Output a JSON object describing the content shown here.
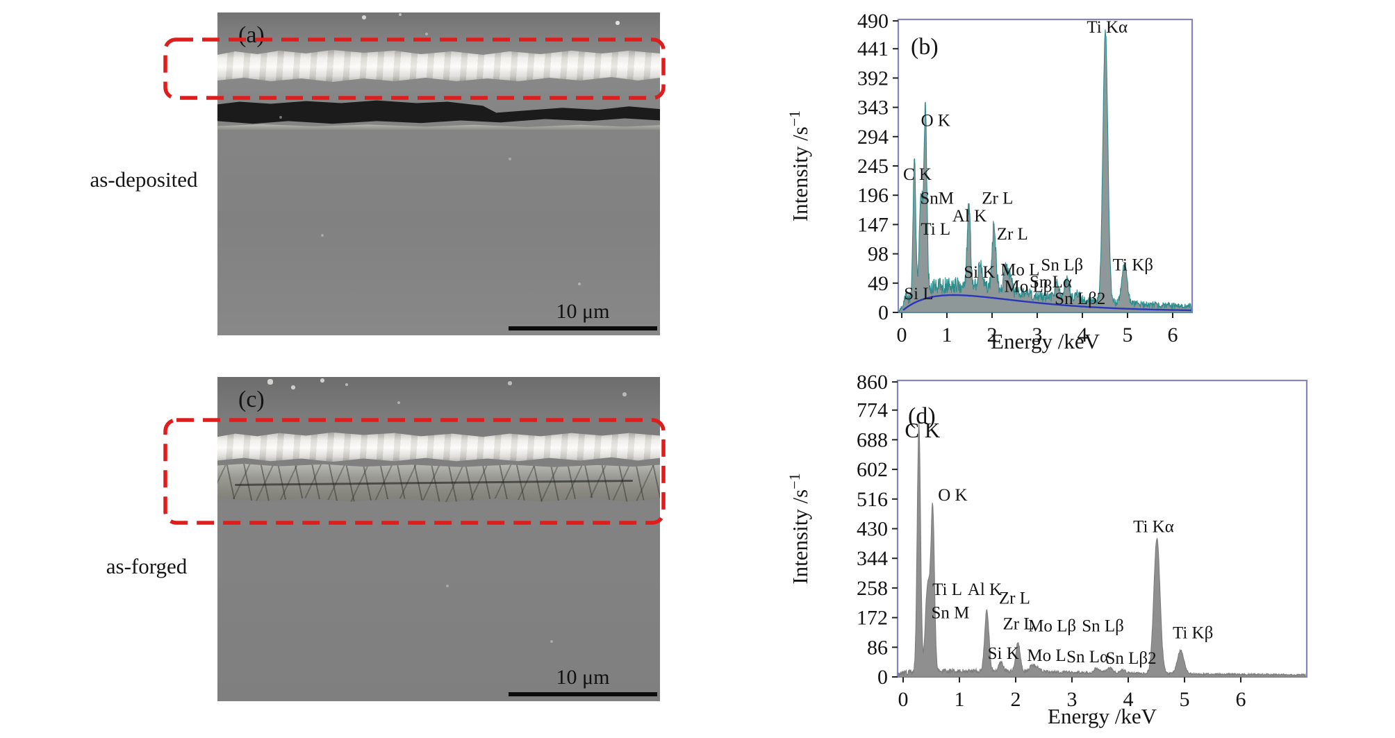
{
  "figure": {
    "rows": [
      {
        "label": "as-deposited",
        "panel": "(a)",
        "scale_label": "10 μm"
      },
      {
        "label": "as-forged",
        "panel": "(c)",
        "scale_label": "10 μm"
      }
    ]
  },
  "colors": {
    "highlight": "#e01d1d",
    "frame": "#8585bb",
    "background_curve": "#2a35b8"
  },
  "chart_data": [
    {
      "id": "b",
      "type": "area",
      "panel_label": "(b)",
      "xlabel": "Energy /keV",
      "ylabel": "Intensity /s",
      "ylabel_superscript": "−1",
      "xlim": [
        -0.08,
        6.43
      ],
      "ylim": [
        0,
        490
      ],
      "xticks": [
        0,
        1,
        2,
        3,
        4,
        5,
        6
      ],
      "yticks": [
        0,
        49,
        98,
        147,
        196,
        245,
        294,
        343,
        392,
        441,
        490
      ],
      "legend": "none",
      "grid": false,
      "background_curve": true,
      "background_hump": {
        "amplitude": 27,
        "peak_keV": 1.15
      },
      "noise_floor": 2,
      "noise_amplitude": 9,
      "noise_decay": 50,
      "fill_color": "#8e9898",
      "stroke_color": "#2d8c8c",
      "peaks": [
        {
          "label": "Si L",
          "keV": 0.09,
          "intensity": 14
        },
        {
          "label": "C K",
          "keV": 0.28,
          "intensity": 228
        },
        {
          "label": "Sn M",
          "keV": 0.41,
          "intensity": 118
        },
        {
          "label": "Ti L",
          "keV": 0.454,
          "intensity": 92
        },
        {
          "label": "O K",
          "keV": 0.525,
          "intensity": 300
        },
        {
          "label": "Al K",
          "keV": 1.487,
          "intensity": 132
        },
        {
          "label": "Si K",
          "keV": 1.74,
          "intensity": 44
        },
        {
          "label": "Zr L",
          "keV": 2.042,
          "intensity": 108
        },
        {
          "label": "Mo L",
          "keV": 2.293,
          "intensity": 42
        },
        {
          "label": "Mo Lβ",
          "keV": 2.395,
          "intensity": 28
        },
        {
          "label": "Sn Lα",
          "keV": 3.444,
          "intensity": 26
        },
        {
          "label": "Sn Lβ",
          "keV": 3.663,
          "intensity": 32
        },
        {
          "label": "Sn Lβ2",
          "keV": 3.905,
          "intensity": 12
        },
        {
          "label": "Ti Kα",
          "keV": 4.51,
          "intensity": 455
        },
        {
          "label": "Ti Kβ",
          "keV": 4.932,
          "intensity": 66
        }
      ],
      "annotations": [
        {
          "text": "Si L",
          "keV": 0.05,
          "units": 22,
          "anchor": "start"
        },
        {
          "text": "C K",
          "keV": 0.03,
          "units": 222,
          "anchor": "start"
        },
        {
          "text": "SnM",
          "keV": 0.78,
          "units": 182
        },
        {
          "text": "Ti L",
          "keV": 0.75,
          "units": 130
        },
        {
          "text": "O K",
          "keV": 0.75,
          "units": 312
        },
        {
          "text": "Al K",
          "keV": 1.5,
          "units": 152
        },
        {
          "text": "Si K",
          "keV": 1.72,
          "units": 58
        },
        {
          "text": "Zr L",
          "keV": 2.12,
          "units": 182
        },
        {
          "text": "Zr L",
          "keV": 2.45,
          "units": 122
        },
        {
          "text": "Mo L",
          "keV": 2.62,
          "units": 62
        },
        {
          "text": "Mo Lβ",
          "keV": 2.8,
          "units": 34
        },
        {
          "text": "Sn Lα",
          "keV": 3.3,
          "units": 42
        },
        {
          "text": "Sn Lβ",
          "keV": 3.55,
          "units": 70
        },
        {
          "text": "Sn Lβ2",
          "keV": 3.95,
          "units": 14
        },
        {
          "text": "Ti Kα",
          "keV": 4.55,
          "units": 468
        },
        {
          "text": "Ti Kβ",
          "keV": 5.12,
          "units": 70
        }
      ]
    },
    {
      "id": "d",
      "type": "area",
      "panel_label": "(d)",
      "xlabel": "Energy /keV",
      "ylabel": "Intensity /s",
      "ylabel_superscript": "−1",
      "xlim": [
        -0.1,
        7.17
      ],
      "ylim": [
        0,
        860
      ],
      "xticks": [
        0,
        1,
        2,
        3,
        4,
        5,
        6
      ],
      "yticks": [
        0,
        86,
        172,
        258,
        344,
        430,
        516,
        602,
        688,
        774,
        860
      ],
      "legend": "none",
      "grid": false,
      "background_curve": false,
      "background_hump": {
        "amplitude": 7,
        "peak_keV": 1.4
      },
      "noise_floor": 2,
      "noise_amplitude": 16,
      "noise_decay": 5,
      "fill_color": "#8f8f8f",
      "stroke_color": "#7c7c7c",
      "peaks": [
        {
          "label": "C K",
          "keV": 0.28,
          "intensity": 715
        },
        {
          "label": "Sn M",
          "keV": 0.41,
          "intensity": 135
        },
        {
          "label": "Ti L",
          "keV": 0.454,
          "intensity": 190
        },
        {
          "label": "O K",
          "keV": 0.525,
          "intensity": 475
        },
        {
          "label": "Al K",
          "keV": 1.487,
          "intensity": 178
        },
        {
          "label": "Si K",
          "keV": 1.74,
          "intensity": 26
        },
        {
          "label": "Zr L",
          "keV": 2.042,
          "intensity": 82
        },
        {
          "label": "Mo L",
          "keV": 2.293,
          "intensity": 20
        },
        {
          "label": "Mo Lβ",
          "keV": 2.395,
          "intensity": 14
        },
        {
          "label": "Sn Lα",
          "keV": 3.444,
          "intensity": 13
        },
        {
          "label": "Sn Lβ",
          "keV": 3.663,
          "intensity": 16
        },
        {
          "label": "Sn Lβ2",
          "keV": 3.905,
          "intensity": 9
        },
        {
          "label": "Ti Kα",
          "keV": 4.51,
          "intensity": 392
        },
        {
          "label": "Ti Kβ",
          "keV": 4.932,
          "intensity": 68
        }
      ],
      "annotations": [
        {
          "text": "C K",
          "keV": 0.03,
          "units": 695,
          "anchor": "start",
          "size": 31
        },
        {
          "text": "O K",
          "keV": 0.62,
          "units": 512,
          "anchor": "start"
        },
        {
          "text": "Ti L",
          "keV": 0.52,
          "units": 238,
          "anchor": "start"
        },
        {
          "text": "Sn M",
          "keV": 0.5,
          "units": 170,
          "anchor": "start"
        },
        {
          "text": "Al K",
          "keV": 1.45,
          "units": 238
        },
        {
          "text": "Zr L",
          "keV": 1.98,
          "units": 212
        },
        {
          "text": "Zr L",
          "keV": 2.05,
          "units": 138
        },
        {
          "text": "Mo Lβ",
          "keV": 2.65,
          "units": 132
        },
        {
          "text": "Sn Lβ",
          "keV": 3.55,
          "units": 132
        },
        {
          "text": "Si K",
          "keV": 1.78,
          "units": 52
        },
        {
          "text": "Mo L",
          "keV": 2.55,
          "units": 46
        },
        {
          "text": "Sn Lα",
          "keV": 3.28,
          "units": 42
        },
        {
          "text": "Sn Lβ2",
          "keV": 4.05,
          "units": 38
        },
        {
          "text": "Ti Kα",
          "keV": 4.45,
          "units": 420
        },
        {
          "text": "Ti Kβ",
          "keV": 5.15,
          "units": 112
        }
      ]
    }
  ]
}
